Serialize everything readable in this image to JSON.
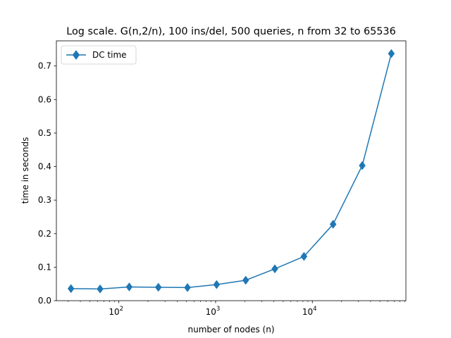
{
  "chart_data": {
    "type": "line",
    "title": "Log scale. G(n,2/n), 100 ins/del, 500 queries, n from 32 to 65536",
    "xlabel": "number of nodes (n)",
    "ylabel": "time in seconds",
    "xscale": "log",
    "xlim": [
      22.6,
      92682
    ],
    "ylim": [
      0,
      0.775
    ],
    "x_ticks": [
      {
        "value": 100,
        "base": "10",
        "exp": "2"
      },
      {
        "value": 1000,
        "base": "10",
        "exp": "3"
      },
      {
        "value": 10000,
        "base": "10",
        "exp": "4"
      }
    ],
    "y_ticks": [
      {
        "value": 0.0,
        "label": "0.0"
      },
      {
        "value": 0.1,
        "label": "0.1"
      },
      {
        "value": 0.2,
        "label": "0.2"
      },
      {
        "value": 0.3,
        "label": "0.3"
      },
      {
        "value": 0.4,
        "label": "0.4"
      },
      {
        "value": 0.5,
        "label": "0.5"
      },
      {
        "value": 0.6,
        "label": "0.6"
      },
      {
        "value": 0.7,
        "label": "0.7"
      }
    ],
    "grid": false,
    "legend_position": "upper-left",
    "series": [
      {
        "name": "DC time",
        "color": "#1f77b4",
        "marker": "diamond",
        "x": [
          32,
          64,
          128,
          256,
          512,
          1024,
          2048,
          4096,
          8192,
          16384,
          32768,
          65536
        ],
        "y": [
          0.036,
          0.035,
          0.041,
          0.04,
          0.039,
          0.048,
          0.061,
          0.095,
          0.132,
          0.228,
          0.403,
          0.737
        ]
      }
    ]
  }
}
